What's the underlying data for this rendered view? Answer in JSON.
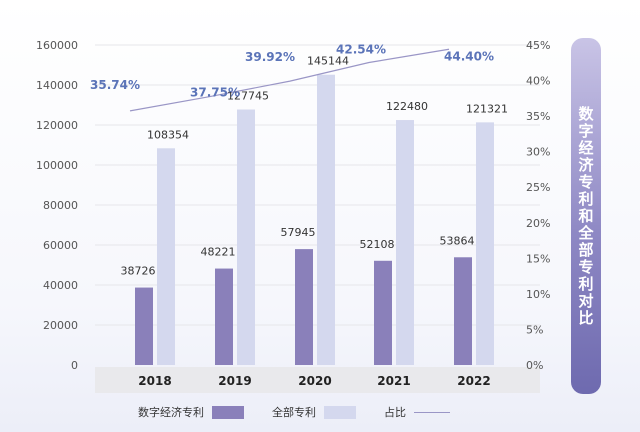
{
  "chart_data": {
    "type": "bar-line",
    "title": "数字经济专利和全部专利对比",
    "categories": [
      "2018",
      "2019",
      "2020",
      "2021",
      "2022"
    ],
    "series": [
      {
        "name": "数字经济专利",
        "kind": "bar",
        "color": "#8a80ba",
        "values": [
          38726,
          48221,
          57945,
          52108,
          53864
        ]
      },
      {
        "name": "全部专利",
        "kind": "bar",
        "color": "#d4d8ee",
        "values": [
          108354,
          127745,
          145144,
          122480,
          121321
        ]
      },
      {
        "name": "占比",
        "kind": "line",
        "axis": "right",
        "color": "#9a96c6",
        "values": [
          35.74,
          37.75,
          39.92,
          42.54,
          44.4
        ],
        "labels": [
          "35.74%",
          "37.75%",
          "39.92%",
          "42.54%",
          "44.40%"
        ]
      }
    ],
    "y_left": {
      "min": 0,
      "max": 160000,
      "ticks": [
        "0",
        "20000",
        "40000",
        "60000",
        "80000",
        "100000",
        "120000",
        "140000",
        "160000"
      ]
    },
    "y_right": {
      "min": 0,
      "max": 45,
      "ticks": [
        "0%",
        "5%",
        "10%",
        "15%",
        "20%",
        "25%",
        "30%",
        "35%",
        "40%",
        "45%"
      ]
    },
    "label_color": "#5b74b8",
    "grid": true,
    "legend_position": "bottom"
  }
}
